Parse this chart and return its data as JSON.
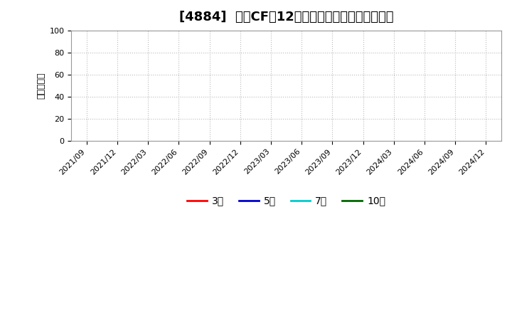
{
  "title": "[4884]  営業CFだ12か月移動合計の平均値の推移",
  "ylabel": "（百万円）",
  "ylim": [
    0,
    100
  ],
  "yticks": [
    0,
    20,
    40,
    60,
    80,
    100
  ],
  "x_labels": [
    "2021/09",
    "2021/12",
    "2022/03",
    "2022/06",
    "2022/09",
    "2022/12",
    "2023/03",
    "2023/06",
    "2023/09",
    "2023/12",
    "2024/03",
    "2024/06",
    "2024/09",
    "2024/12"
  ],
  "legend_entries": [
    {
      "label": "3年",
      "color": "#ff0000"
    },
    {
      "label": "5年",
      "color": "#0000cc"
    },
    {
      "label": "7年",
      "color": "#00cccc"
    },
    {
      "label": "10年",
      "color": "#006600"
    }
  ],
  "background_color": "#ffffff",
  "plot_bg_color": "#ffffff",
  "grid_color": "#bbbbbb",
  "title_fontsize": 13,
  "ylabel_fontsize": 9,
  "tick_fontsize": 8,
  "legend_fontsize": 10
}
